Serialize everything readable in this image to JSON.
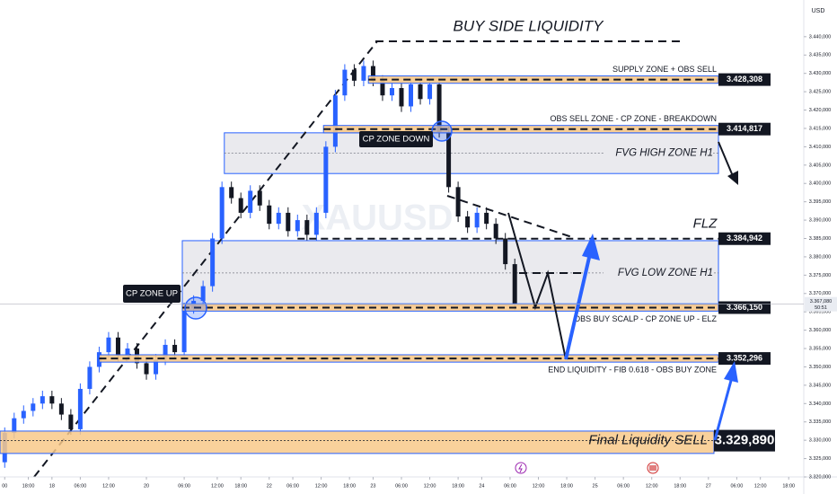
{
  "chart_data": {
    "type": "candlestick",
    "title": "BUY SIDE LIQUIDITY",
    "currency": "USD",
    "watermark": "XAUUSD",
    "x": [
      1,
      3,
      5,
      7,
      9,
      11,
      13,
      15,
      17,
      19,
      21,
      23,
      25,
      27,
      29,
      31,
      33,
      35,
      37,
      39,
      41,
      43,
      45,
      47,
      49,
      51,
      53,
      55,
      57,
      59,
      61,
      63,
      65,
      67,
      69,
      71,
      73,
      75,
      77,
      79,
      81,
      83,
      85,
      87,
      89,
      91,
      93,
      95,
      97,
      99,
      101,
      103,
      105,
      107,
      109
    ],
    "open": [
      3324,
      3332,
      3336,
      3338,
      3340,
      3342,
      3340,
      3337,
      3333,
      3344,
      3350,
      3354,
      3358,
      3353,
      3355,
      3351,
      3348,
      3352,
      3356,
      3354,
      3366,
      3368,
      3372,
      3385,
      3399,
      3396,
      3392,
      3398,
      3394,
      3389,
      3392,
      3387,
      3390,
      3386,
      3392,
      3410,
      3424,
      3431,
      3428,
      3432,
      3428,
      3424,
      3426,
      3421,
      3427,
      3423,
      3427,
      3414,
      3399,
      3391,
      3388,
      3392,
      3389,
      3385,
      3378
    ],
    "high": [
      3333.5,
      3337.5,
      3339.5,
      3341.5,
      3343.5,
      3343.5,
      3341.5,
      3338.5,
      3345.5,
      3351.5,
      3355.5,
      3359.5,
      3359.5,
      3356.5,
      3356.5,
      3352.5,
      3353.5,
      3357.5,
      3357.5,
      3367.5,
      3369.5,
      3373.5,
      3386.5,
      3400.5,
      3400.5,
      3397.5,
      3399.5,
      3399.5,
      3395.5,
      3393.5,
      3393.5,
      3391.5,
      3391.5,
      3393.5,
      3411.5,
      3425.5,
      3432.5,
      3432.5,
      3433.5,
      3433.5,
      3429.5,
      3427.5,
      3427.5,
      3428.5,
      3428.5,
      3428.5,
      3428.5,
      3415.5,
      3400.5,
      3392.5,
      3393.5,
      3393.5,
      3390.5,
      3386.5,
      3379.5
    ],
    "low": [
      3322.5,
      3330.5,
      3334.5,
      3336.5,
      3338.5,
      3338.5,
      3335.5,
      3331.5,
      3331.5,
      3342.5,
      3348.5,
      3352.5,
      3351.5,
      3351.5,
      3349.5,
      3346.5,
      3346.5,
      3350.5,
      3352.5,
      3352.5,
      3364.5,
      3366.5,
      3370.5,
      3383.5,
      3394.5,
      3390.5,
      3390.5,
      3392.5,
      3387.5,
      3387.5,
      3385.5,
      3385.5,
      3384.5,
      3384.5,
      3390.5,
      3408.5,
      3422.5,
      3426.5,
      3426.5,
      3426.5,
      3422.5,
      3422.5,
      3419.5,
      3419.5,
      3421.5,
      3421.5,
      3412.5,
      3397.5,
      3389.5,
      3386.5,
      3386.5,
      3387.5,
      3383.5,
      3376.5,
      3365.5
    ],
    "close": [
      3332,
      3336,
      3338,
      3340,
      3342,
      3340,
      3337,
      3333,
      3344,
      3350,
      3354,
      3358,
      3353,
      3355,
      3351,
      3348,
      3352,
      3356,
      3354,
      3366,
      3368,
      3372,
      3385,
      3399,
      3396,
      3392,
      3398,
      3394,
      3389,
      3392,
      3387,
      3390,
      3386,
      3392,
      3410,
      3424,
      3431,
      3428,
      3432,
      3428,
      3424,
      3426,
      3421,
      3427,
      3423,
      3427,
      3414,
      3399,
      3391,
      3388,
      3392,
      3389,
      3385,
      3378,
      3367
    ],
    "up_color": "#2962ff",
    "down_color": "#131722",
    "xlim": [
      0,
      170
    ],
    "xticks": [
      {
        "value": 1,
        "label": "00"
      },
      {
        "value": 6,
        "label": "18:00"
      },
      {
        "value": 11,
        "label": "18"
      },
      {
        "value": 17,
        "label": "06:00"
      },
      {
        "value": 23,
        "label": "12:00"
      },
      {
        "value": 31,
        "label": "20"
      },
      {
        "value": 39,
        "label": "06:00"
      },
      {
        "value": 46,
        "label": "12:00"
      },
      {
        "value": 51,
        "label": "18:00"
      },
      {
        "value": 57,
        "label": "22"
      },
      {
        "value": 62,
        "label": "06:00"
      },
      {
        "value": 68,
        "label": "12:00"
      },
      {
        "value": 74,
        "label": "18:00"
      },
      {
        "value": 79,
        "label": "23"
      },
      {
        "value": 85,
        "label": "06:00"
      },
      {
        "value": 91,
        "label": "12:00"
      },
      {
        "value": 97,
        "label": "18:00"
      },
      {
        "value": 102,
        "label": "24"
      },
      {
        "value": 108,
        "label": "06:00"
      },
      {
        "value": 114,
        "label": "12:00"
      },
      {
        "value": 120,
        "label": "18:00"
      },
      {
        "value": 126,
        "label": "25"
      },
      {
        "value": 132,
        "label": "06:00"
      },
      {
        "value": 138,
        "label": "12:00"
      },
      {
        "value": 144,
        "label": "18:00"
      },
      {
        "value": 150,
        "label": "27"
      },
      {
        "value": 156,
        "label": "06:00"
      },
      {
        "value": 161,
        "label": "12:00"
      },
      {
        "value": 167,
        "label": "18:00"
      }
    ],
    "ylim": [
      3320,
      3450
    ],
    "yticks": [
      {
        "value": 3320,
        "label": "3.320,000"
      },
      {
        "value": 3325,
        "label": "3.325,000"
      },
      {
        "value": 3330,
        "label": "3.330,000"
      },
      {
        "value": 3335,
        "label": "3.335,000"
      },
      {
        "value": 3340,
        "label": "3.340,000"
      },
      {
        "value": 3345,
        "label": "3.345,000"
      },
      {
        "value": 3350,
        "label": "3.350,000"
      },
      {
        "value": 3355,
        "label": "3.355,000"
      },
      {
        "value": 3360,
        "label": "3.360,000"
      },
      {
        "value": 3365,
        "label": "3.365,000"
      },
      {
        "value": 3370,
        "label": "3.370,000"
      },
      {
        "value": 3375,
        "label": "3.375,000"
      },
      {
        "value": 3380,
        "label": "3.380,000"
      },
      {
        "value": 3385,
        "label": "3.385,000"
      },
      {
        "value": 3390,
        "label": "3.390,000"
      },
      {
        "value": 3395,
        "label": "3.395,000"
      },
      {
        "value": 3400,
        "label": "3.400,000"
      },
      {
        "value": 3405,
        "label": "3.405,000"
      },
      {
        "value": 3410,
        "label": "3.410,000"
      },
      {
        "value": 3415,
        "label": "3.415,000"
      },
      {
        "value": 3420,
        "label": "3.420,000"
      },
      {
        "value": 3425,
        "label": "3.425,000"
      },
      {
        "value": 3430,
        "label": "3.430,000"
      },
      {
        "value": 3435,
        "label": "3.435,000"
      },
      {
        "value": 3440,
        "label": "3.440,000"
      }
    ],
    "grid": false,
    "zones": [
      {
        "kind": "box",
        "text": "FVG HIGH ZONE H1",
        "range": [
          3402.7,
          3413.8
        ],
        "start": 47.5
      },
      {
        "kind": "box",
        "text": "FVG LOW ZONE H1",
        "range": [
          3366.8,
          3384.4
        ],
        "start": 38.6
      },
      {
        "kind": "band",
        "text": "SUPPLY ZONE + OBS SELL",
        "level": 3428.308,
        "label": "3.428,308",
        "range": [
          3427.3,
          3429.3
        ],
        "start": 78
      },
      {
        "kind": "band",
        "text": "OBS SELL ZONE - CP ZONE - BREAKDOWN",
        "level": 3414.817,
        "label": "3.414,817",
        "range": [
          3413.8,
          3415.8
        ],
        "start": 68.5
      },
      {
        "kind": "line",
        "text": "FLZ",
        "level": 3384.942,
        "label": "3.384,942",
        "start": 63
      },
      {
        "kind": "band",
        "text": "OBS BUY SCALP - CP ZONE UP - ELZ",
        "level": 3366.15,
        "label": "3.366,150",
        "range": [
          3365.2,
          3367.2
        ],
        "start": 38.6
      },
      {
        "kind": "band",
        "text": "END LIQUIDITY - FIB 0.618 - OBS BUY ZONE",
        "level": 3352.296,
        "label": "3.352,296",
        "range": [
          3351.3,
          3353.3
        ],
        "start": 21
      },
      {
        "kind": "band",
        "style": "large",
        "text": "Final Liquidity SELL",
        "level": 3329.89,
        "label": "3.329,890",
        "range": [
          3326.4,
          3332.5
        ],
        "start": 0
      }
    ],
    "labels": [
      "CP ZONE UP",
      "CP ZONE  DOWN"
    ],
    "last_price": {
      "value": 3367.08,
      "label": "3.367,080"
    },
    "countdown": "50:51"
  }
}
